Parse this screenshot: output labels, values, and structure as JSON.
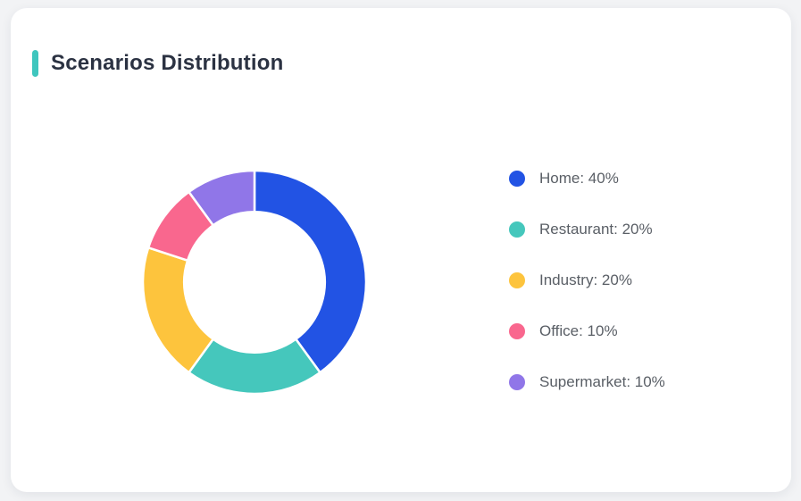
{
  "header": {
    "title": "Scenarios Distribution",
    "accent_color": "#3fc6be"
  },
  "theme": {
    "page_background": "#f2f3f5",
    "card_background": "#ffffff",
    "title_color": "#2b3242",
    "legend_text_color": "#5a5f66"
  },
  "chart_data": {
    "type": "pie",
    "title": "Scenarios Distribution",
    "donut": true,
    "donut_hole_ratio": 0.63,
    "start_angle_deg": 0,
    "direction": "clockwise",
    "unit": "%",
    "legend_position": "right",
    "slices": [
      {
        "label": "Home",
        "value": 40,
        "color": "#2253e4"
      },
      {
        "label": "Restaurant",
        "value": 20,
        "color": "#45c7bc"
      },
      {
        "label": "Industry",
        "value": 20,
        "color": "#fdc43d"
      },
      {
        "label": "Office",
        "value": 10,
        "color": "#f9678e"
      },
      {
        "label": "Supermarket",
        "value": 10,
        "color": "#9076e8"
      }
    ]
  }
}
